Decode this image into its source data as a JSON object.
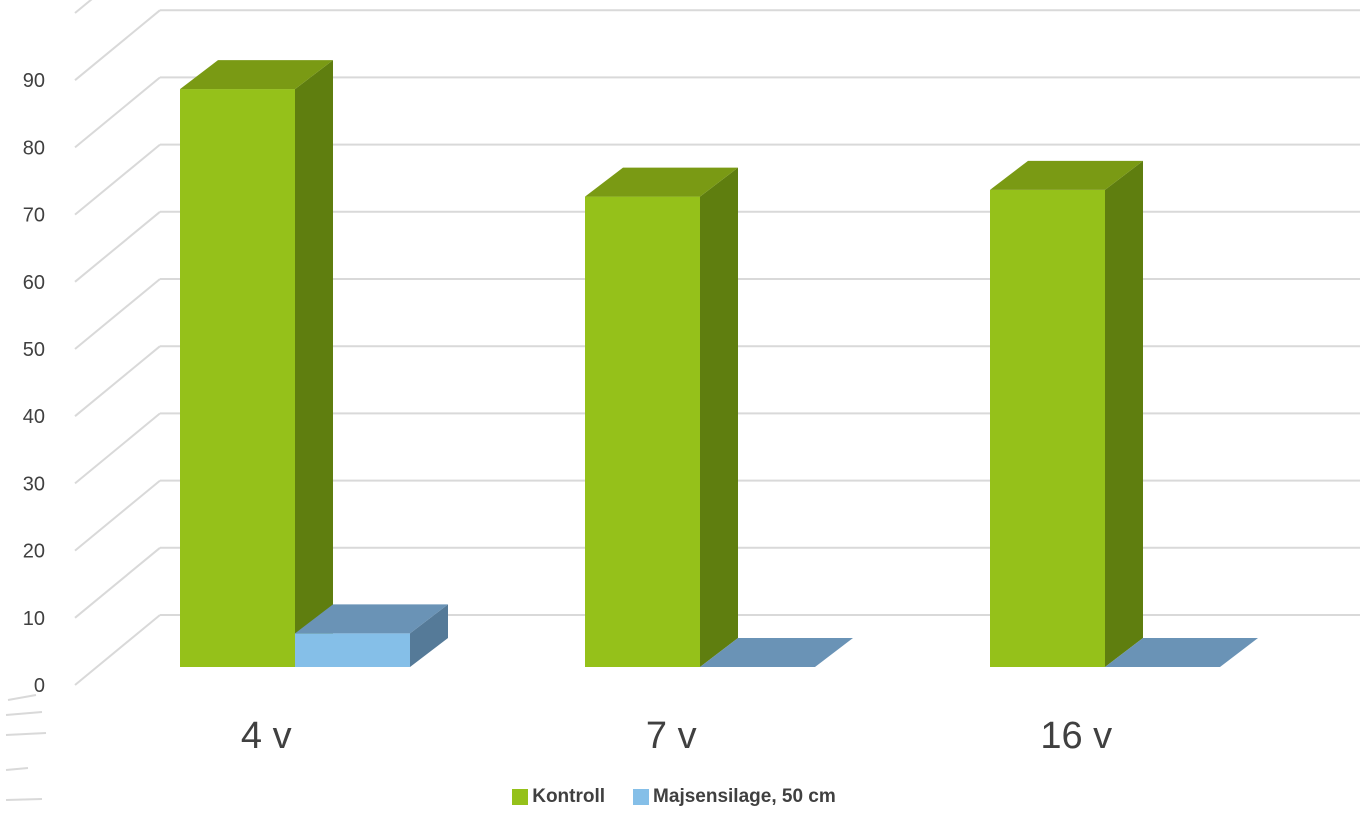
{
  "chart_data": {
    "type": "bar",
    "three_d": true,
    "categories": [
      "4 v",
      "7 v",
      "16 v"
    ],
    "series": [
      {
        "name": "Kontroll",
        "values": [
          86,
          70,
          71
        ],
        "color": "#95c11a",
        "side_color": "#5f7e0f",
        "top_color": "#7a9a14"
      },
      {
        "name": "Majsensilage, 50 cm",
        "values": [
          5,
          0,
          0
        ],
        "color": "#85bfe8",
        "side_color": "#557a98",
        "top_color": "#6a93b6"
      }
    ],
    "yticks": [
      0,
      10,
      20,
      30,
      40,
      50,
      60,
      70,
      80,
      90
    ],
    "ylim": [
      0,
      100
    ],
    "grid": true,
    "legend_position": "bottom"
  }
}
